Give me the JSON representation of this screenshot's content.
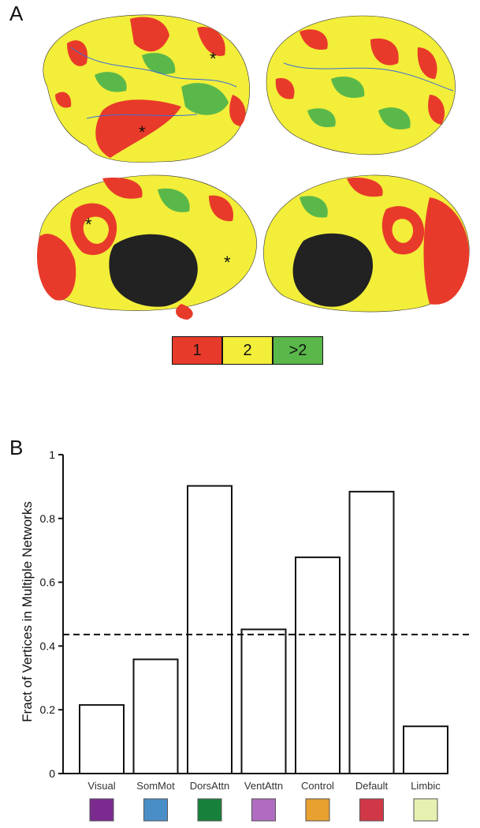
{
  "panel_a": {
    "label": "A",
    "legend": [
      {
        "text": "1",
        "color": "#e83a2a"
      },
      {
        "text": "2",
        "color": "#f2ee3a"
      },
      {
        "text": ">2",
        "color": "#5ab84a"
      }
    ],
    "markers": [
      "*",
      "*",
      "*",
      "*"
    ]
  },
  "panel_b": {
    "label": "B"
  },
  "chart_data": {
    "type": "bar",
    "ylabel": "Fract of Vertices in Multiple Networks",
    "ylim": [
      0,
      1
    ],
    "yticks": [
      "0",
      "0.2",
      "0.4",
      "0.6",
      "0.8",
      "1"
    ],
    "categories": [
      "Visual",
      "SomMot",
      "DorsAttn",
      "VentAttn",
      "Control",
      "Default",
      "Limbic"
    ],
    "values": [
      0.215,
      0.358,
      0.902,
      0.452,
      0.678,
      0.884,
      0.148
    ],
    "reference_line": 0.436,
    "category_colors": [
      "#7b2a8f",
      "#4a8ec8",
      "#17813b",
      "#b06cc0",
      "#e8a030",
      "#d03848",
      "#e6f0b0"
    ]
  }
}
